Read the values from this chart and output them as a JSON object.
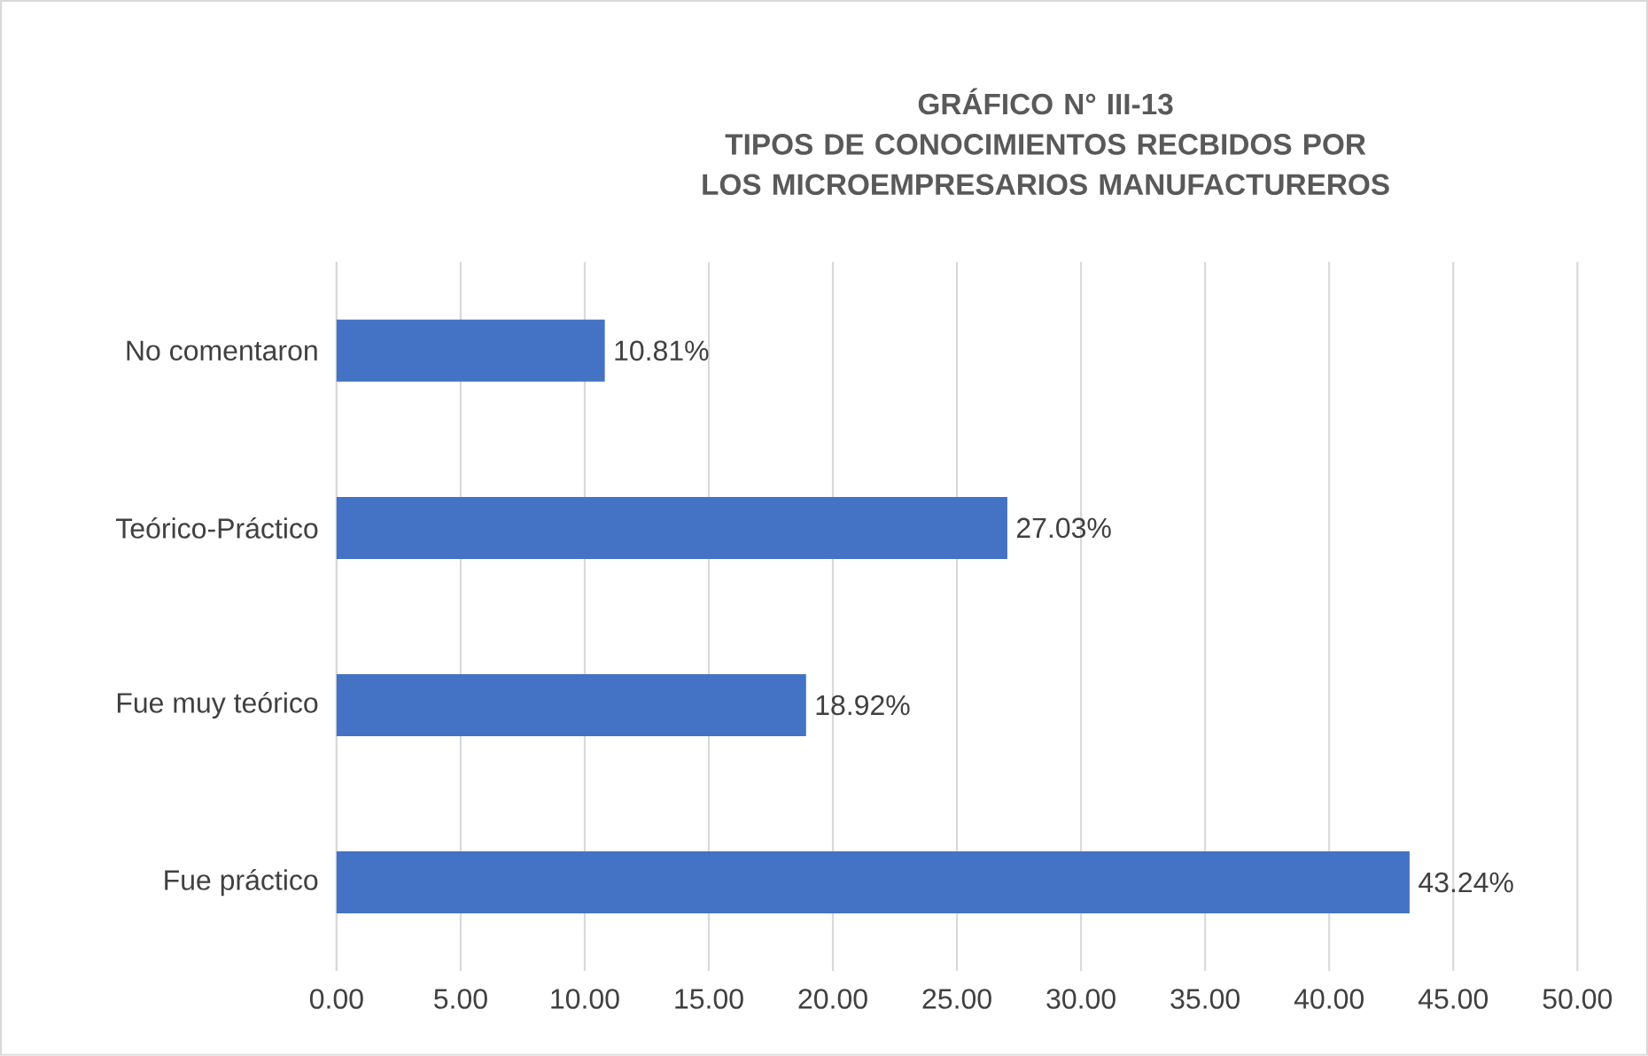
{
  "chart_data": {
    "type": "bar",
    "orientation": "horizontal",
    "title": "GRÁFICO N° III-13",
    "subtitle": "TIPOS DE CONOCIMIENTOS RECBIDOS POR LOS MICROEMPRESARIOS MANUFACTUREROS",
    "categories": [
      "No comentaron",
      "Teórico-Práctico",
      "Fue muy teórico",
      "Fue práctico"
    ],
    "values": [
      10.81,
      27.03,
      18.92,
      43.24
    ],
    "value_labels": [
      "10.81%",
      "27.03%",
      "18.92%",
      "43.24%"
    ],
    "color": "#4472c4",
    "xlim": [
      0,
      50
    ],
    "xticks": [
      {
        "value": 0,
        "label": "0.00"
      },
      {
        "value": 5,
        "label": "5.00"
      },
      {
        "value": 10,
        "label": "10.00"
      },
      {
        "value": 15,
        "label": "15.00"
      },
      {
        "value": 20,
        "label": "20.00"
      },
      {
        "value": 25,
        "label": "25.00"
      },
      {
        "value": 30,
        "label": "30.00"
      },
      {
        "value": 35,
        "label": "35.00"
      },
      {
        "value": 40,
        "label": "40.00"
      },
      {
        "value": 45,
        "label": "45.00"
      },
      {
        "value": 50,
        "label": "50.00"
      }
    ],
    "grid": "x"
  }
}
